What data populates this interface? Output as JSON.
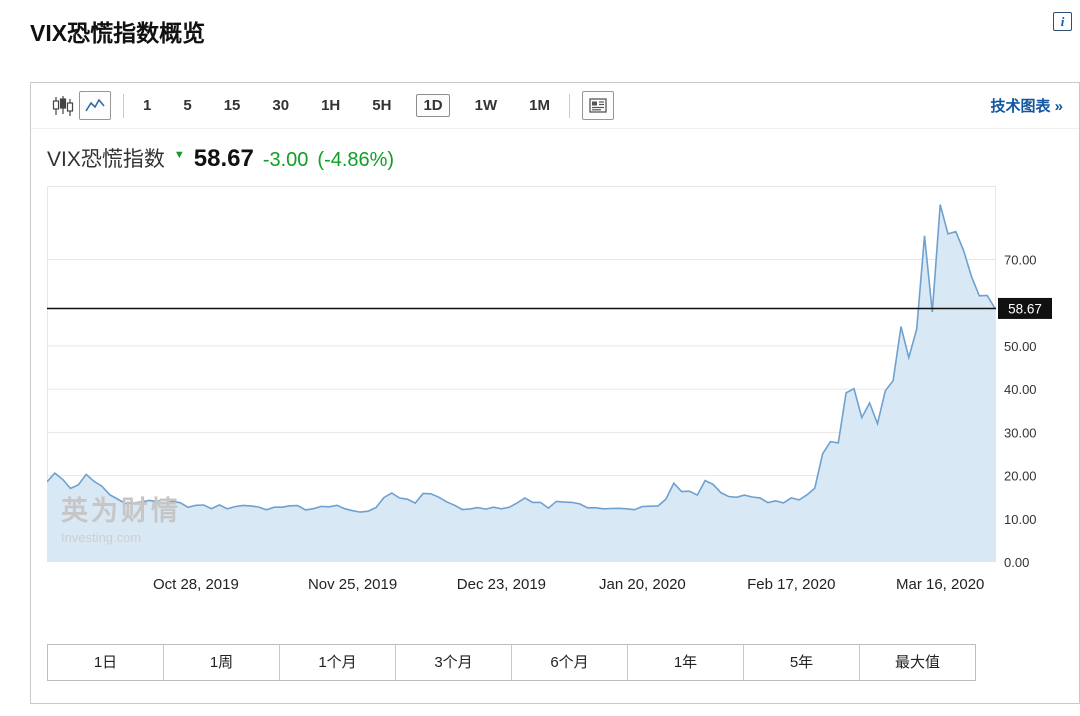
{
  "page": {
    "title": "VIX恐慌指数概览",
    "accent_blue": "#1256a0"
  },
  "header": {
    "info_icon_label": "i"
  },
  "toolbar": {
    "chart_type_candlestick": "candlestick-chart",
    "chart_type_line": "line-chart",
    "intervals": [
      "1",
      "5",
      "15",
      "30",
      "1H",
      "5H",
      "1D",
      "1W",
      "1M"
    ],
    "selected_interval": "1D",
    "news_button": "chart-news",
    "tech_chart_link": "技术图表 »"
  },
  "quote": {
    "name": "VIX恐慌指数",
    "direction": "down",
    "arrow": "▼",
    "last": "58.67",
    "change": "-3.00",
    "change_pct": "(-4.86%)",
    "change_color": "#0f9e26"
  },
  "watermark": {
    "cn": "英为财情",
    "en": "Investing.com"
  },
  "chart_data": {
    "type": "area",
    "title": "VIX恐慌指数",
    "xlabel": "",
    "ylabel": "",
    "x_labels": [
      "Oct 28, 2019",
      "Nov 25, 2019",
      "Dec 23, 2019",
      "Jan 20, 2020",
      "Feb 17, 2020",
      "Mar 16, 2020"
    ],
    "x_label_indices": [
      19,
      39,
      58,
      76,
      95,
      114
    ],
    "values": [
      18.56,
      20.56,
      19.12,
      17.04,
      17.86,
      20.28,
      18.64,
      17.57,
      15.58,
      14.57,
      13.54,
      13.68,
      13.85,
      14.25,
      14.02,
      14.46,
      14.01,
      13.71,
      12.65,
      13.11,
      13.2,
      12.33,
      13.22,
      12.3,
      12.83,
      13.1,
      12.98,
      12.73,
      12.07,
      12.69,
      12.69,
      13.0,
      13.05,
      12.05,
      12.34,
      12.86,
      12.78,
      13.13,
      12.34,
      11.87,
      11.54,
      11.75,
      12.62,
      14.91,
      15.96,
      14.8,
      14.52,
      13.62,
      15.86,
      15.77,
      14.99,
      13.94,
      13.14,
      12.14,
      12.29,
      12.58,
      12.25,
      12.67,
      12.3,
      12.65,
      13.68,
      14.82,
      13.78,
      13.78,
      12.47,
      14.02,
      13.85,
      13.79,
      13.45,
      12.54,
      12.56,
      12.32,
      12.39,
      12.42,
      12.32,
      12.1,
      12.85,
      12.91,
      12.98,
      14.56,
      18.23,
      16.28,
      16.39,
      15.49,
      18.84,
      17.97,
      16.05,
      15.15,
      14.96,
      15.47,
      15.04,
      14.83,
      13.74,
      14.15,
      13.68,
      14.83,
      14.38,
      15.56,
      17.08,
      25.03,
      27.85,
      27.56,
      39.16,
      40.11,
      33.42,
      36.82,
      31.99,
      39.62,
      41.94,
      54.46,
      47.3,
      53.9,
      75.47,
      57.83,
      82.69,
      75.91,
      76.45,
      72.0,
      66.04,
      61.59,
      61.67,
      58.67
    ],
    "ylim": [
      0,
      87
    ],
    "y_ticks": [
      70,
      50,
      40,
      30,
      20,
      10,
      0
    ],
    "last_price": 58.67,
    "grid": true,
    "legend": "none",
    "line_color": "#6fa1cf",
    "fill_color": "#d9e8f5",
    "grid_color": "#e6e6e6",
    "last_line_color": "#111111",
    "axis_text_color": "#333333"
  },
  "range_buttons": [
    "1日",
    "1周",
    "1个月",
    "3个月",
    "6个月",
    "1年",
    "5年",
    "最大值"
  ]
}
